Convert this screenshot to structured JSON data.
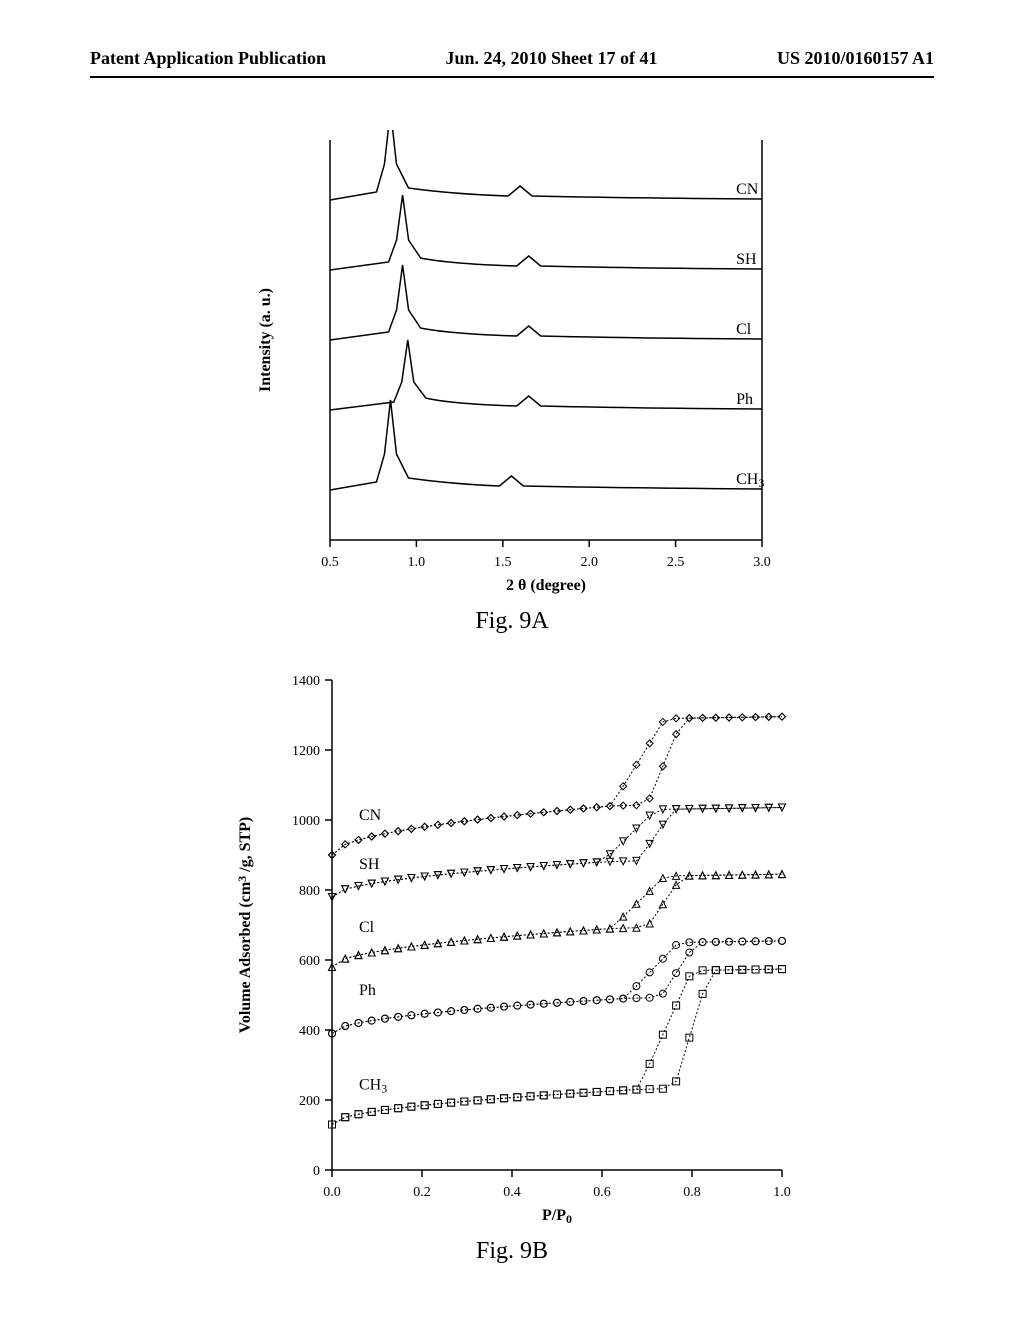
{
  "header": {
    "left": "Patent Application Publication",
    "center": "Jun. 24, 2010  Sheet 17 of 41",
    "right": "US 2010/0160157 A1"
  },
  "figA": {
    "type": "line",
    "caption": "Fig. 9A",
    "xlabel": "2 θ (degree)",
    "ylabel": "Intensity (a. u.)",
    "xlim": [
      0.5,
      3.0
    ],
    "xticks": [
      0.5,
      1.0,
      1.5,
      2.0,
      2.5,
      3.0
    ],
    "background_color": "#ffffff",
    "axis_color": "#000000",
    "line_color": "#000000",
    "line_width": 1.5,
    "label_fontsize": 16,
    "tick_fontsize": 14,
    "series_labels": [
      "CN",
      "SH",
      "Cl",
      "Ph",
      "CH"
    ],
    "ch3_subscript": "3",
    "curves": [
      {
        "label": "CN",
        "y_offset": 340,
        "peak_x": 0.85,
        "peak_h": 90,
        "sec_peak_x": 1.6
      },
      {
        "label": "SH",
        "y_offset": 270,
        "peak_x": 0.92,
        "peak_h": 75,
        "sec_peak_x": 1.65
      },
      {
        "label": "Cl",
        "y_offset": 200,
        "peak_x": 0.92,
        "peak_h": 75,
        "sec_peak_x": 1.65
      },
      {
        "label": "Ph",
        "y_offset": 130,
        "peak_x": 0.95,
        "peak_h": 70,
        "sec_peak_x": 1.65
      },
      {
        "label": "CH3",
        "y_offset": 50,
        "peak_x": 0.85,
        "peak_h": 90,
        "sec_peak_x": 1.55
      }
    ]
  },
  "figB": {
    "type": "scatter-line",
    "caption": "Fig. 9B",
    "xlabel": "P/P",
    "xlabel_sub": "0",
    "ylabel": "Volume Adsorbed (cm",
    "ylabel_sup": "3",
    "ylabel_rest": " /g, STP)",
    "xlim": [
      0.0,
      1.0
    ],
    "ylim": [
      0,
      1400
    ],
    "xticks": [
      0.0,
      0.2,
      0.4,
      0.6,
      0.8,
      1.0
    ],
    "yticks": [
      0,
      200,
      400,
      600,
      800,
      1000,
      1200,
      1400
    ],
    "background_color": "#ffffff",
    "axis_color": "#000000",
    "marker_color": "#000000",
    "line_color": "#000000",
    "line_width": 1,
    "label_fontsize": 16,
    "tick_fontsize": 14,
    "series": [
      {
        "label": "CN",
        "label_x": 0.06,
        "label_y": 1000,
        "marker": "diamond",
        "y_start": 900,
        "y_plateau": 1040,
        "y_end": 1290,
        "step_x": 0.62
      },
      {
        "label": "SH",
        "label_x": 0.06,
        "label_y": 860,
        "marker": "triangle-down",
        "y_start": 780,
        "y_plateau": 880,
        "y_end": 1030,
        "step_x": 0.6
      },
      {
        "label": "Cl",
        "label_x": 0.06,
        "label_y": 680,
        "marker": "triangle-up",
        "y_start": 580,
        "y_plateau": 690,
        "y_end": 840,
        "step_x": 0.62
      },
      {
        "label": "Ph",
        "label_x": 0.06,
        "label_y": 500,
        "marker": "circle",
        "y_start": 390,
        "y_plateau": 490,
        "y_end": 650,
        "step_x": 0.65
      },
      {
        "label": "CH3",
        "label_x": 0.06,
        "label_y": 230,
        "marker": "square",
        "y_start": 130,
        "y_plateau": 230,
        "y_end": 570,
        "step_x": 0.68
      }
    ]
  }
}
